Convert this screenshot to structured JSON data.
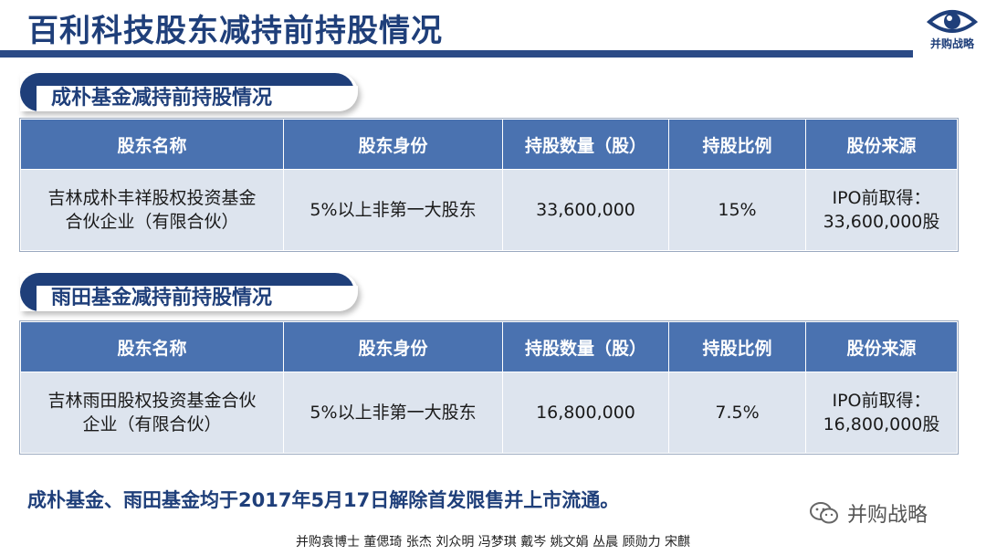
{
  "title": "百利科技股东减持前持股情况",
  "logo": {
    "text": "并购战略",
    "icon": "eye-icon"
  },
  "columns": [
    "股东名称",
    "股东身份",
    "持股数量（股）",
    "持股比例",
    "股份来源"
  ],
  "sections": [
    {
      "header": "成朴基金减持前持股情况",
      "row": {
        "name_line1": "吉林成朴丰祥股权投资基金",
        "name_line2": "合伙企业（有限合伙）",
        "identity": "5%以上非第一大股东",
        "shares": "33,600,000",
        "ratio": "15%",
        "source_line1": "IPO前取得：",
        "source_line2": "33,600,000股"
      }
    },
    {
      "header": "雨田基金减持前持股情况",
      "row": {
        "name_line1": "吉林雨田股权投资基金合伙",
        "name_line2": "企业（有限合伙）",
        "identity": "5%以上非第一大股东",
        "shares": "16,800,000",
        "ratio": "7.5%",
        "source_line1": "IPO前取得：",
        "source_line2": "16,800,000股"
      }
    }
  ],
  "footer_note": "成朴基金、雨田基金均于2017年5月17日解除首发限售并上市流通。",
  "watermark": {
    "text": "并购战略",
    "icon": "wechat-icon"
  },
  "credits": "并购袁博士 董偲琦 张杰 刘众明 冯梦琪 戴岑 姚文娟  丛晨 顾勋力 宋麒",
  "colors": {
    "primary": "#1f3f7a",
    "header_fill": "#4a72b0",
    "cell_fill": "#dde4ee"
  }
}
